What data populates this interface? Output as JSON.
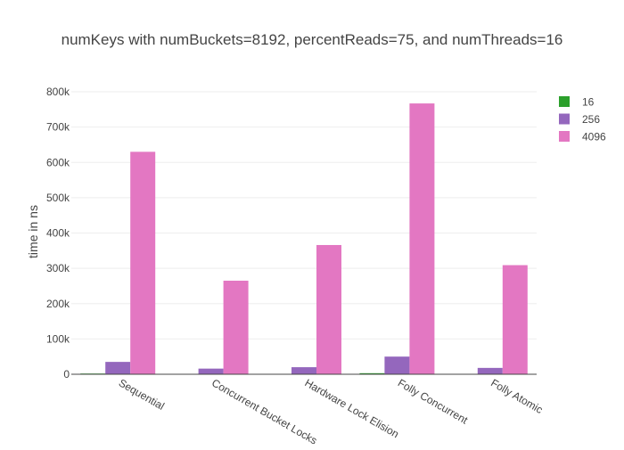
{
  "chart_data": {
    "type": "bar",
    "title": "numKeys with numBuckets=8192, percentReads=75, and numThreads=16",
    "ylabel": "time in ns",
    "xlabel": "",
    "ylim": [
      0,
      800000
    ],
    "yticks": [
      0,
      100000,
      200000,
      300000,
      400000,
      500000,
      600000,
      700000,
      800000
    ],
    "ytick_labels": [
      "0",
      "100k",
      "200k",
      "300k",
      "400k",
      "500k",
      "600k",
      "700k",
      "800k"
    ],
    "categories": [
      "Sequential",
      "Concurrent Bucket Locks",
      "Hardware Lock Elision",
      "Folly Concurrent",
      "Folly Atomic"
    ],
    "series": [
      {
        "name": "16",
        "color": "#2ca02c",
        "values": [
          2000,
          1000,
          1200,
          3000,
          1000
        ]
      },
      {
        "name": "256",
        "color": "#9467bd",
        "values": [
          35000,
          16000,
          20000,
          50000,
          18000
        ]
      },
      {
        "name": "4096",
        "color": "#e377c2",
        "values": [
          630000,
          265000,
          366000,
          767000,
          309000
        ]
      }
    ],
    "grid": true,
    "legend_position": "top-right"
  }
}
